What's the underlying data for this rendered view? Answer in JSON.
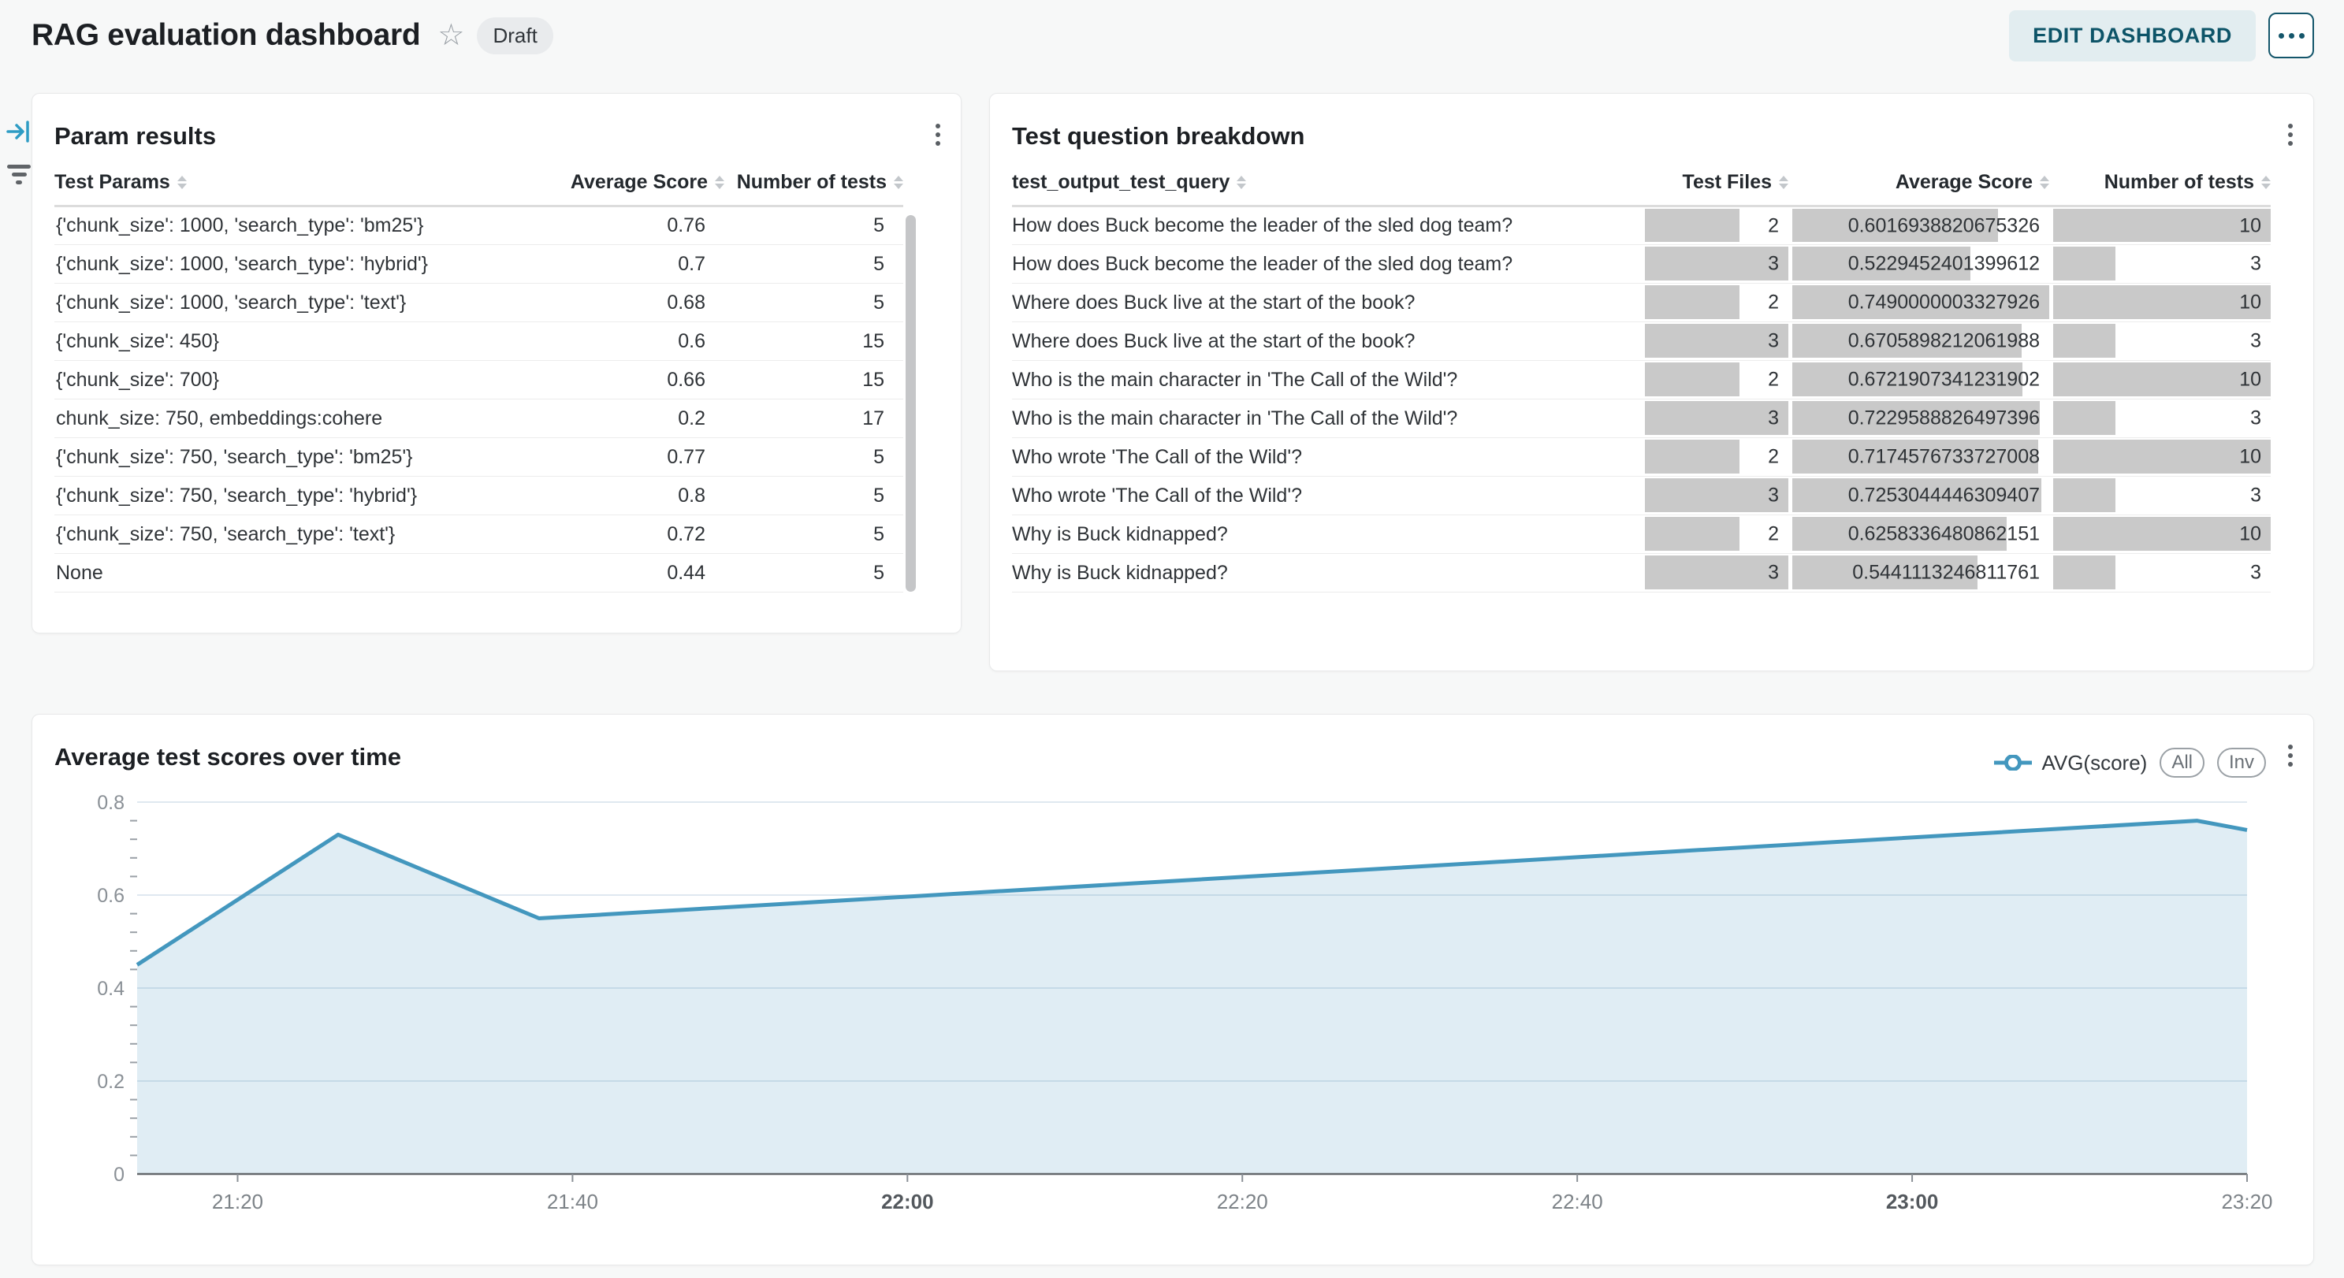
{
  "header": {
    "title": "RAG evaluation dashboard",
    "status_badge": "Draft",
    "edit_button": "EDIT DASHBOARD"
  },
  "param_results": {
    "title": "Param results",
    "columns": [
      "Test Params",
      "Average Score",
      "Number of tests"
    ],
    "rows": [
      [
        "{'chunk_size': 1000, 'search_type': 'bm25'}",
        "0.76",
        "5"
      ],
      [
        "{'chunk_size': 1000, 'search_type': 'hybrid'}",
        "0.7",
        "5"
      ],
      [
        "{'chunk_size': 1000, 'search_type': 'text'}",
        "0.68",
        "5"
      ],
      [
        "{'chunk_size': 450}",
        "0.6",
        "15"
      ],
      [
        "{'chunk_size': 700}",
        "0.66",
        "15"
      ],
      [
        "chunk_size: 750, embeddings:cohere",
        "0.2",
        "17"
      ],
      [
        "{'chunk_size': 750, 'search_type': 'bm25'}",
        "0.77",
        "5"
      ],
      [
        "{'chunk_size': 750, 'search_type': 'hybrid'}",
        "0.8",
        "5"
      ],
      [
        "{'chunk_size': 750, 'search_type': 'text'}",
        "0.72",
        "5"
      ],
      [
        "None",
        "0.44",
        "5"
      ]
    ]
  },
  "question_breakdown": {
    "title": "Test question breakdown",
    "columns": [
      "test_output_test_query",
      "Test Files",
      "Average Score",
      "Number of tests"
    ],
    "bar_color": "#c9c9c9",
    "bar_max": {
      "test_files": 3,
      "avg_score": 0.7490000003327926,
      "num_tests": 10
    },
    "rows": [
      {
        "query": "How does Buck become the leader of the sled dog team?",
        "test_files": "2",
        "avg_score": "0.6016938820675326",
        "num_tests": "10"
      },
      {
        "query": "How does Buck become the leader of the sled dog team?",
        "test_files": "3",
        "avg_score": "0.5229452401399612",
        "num_tests": "3"
      },
      {
        "query": "Where does Buck live at the start of the book?",
        "test_files": "2",
        "avg_score": "0.7490000003327926",
        "num_tests": "10"
      },
      {
        "query": "Where does Buck live at the start of the book?",
        "test_files": "3",
        "avg_score": "0.6705898212061988",
        "num_tests": "3"
      },
      {
        "query": "Who is the main character in 'The Call of the Wild'?",
        "test_files": "2",
        "avg_score": "0.6721907341231902",
        "num_tests": "10"
      },
      {
        "query": "Who is the main character in 'The Call of the Wild'?",
        "test_files": "3",
        "avg_score": "0.7229588826497396",
        "num_tests": "3"
      },
      {
        "query": "Who wrote 'The Call of the Wild'?",
        "test_files": "2",
        "avg_score": "0.7174576733727008",
        "num_tests": "10"
      },
      {
        "query": "Who wrote 'The Call of the Wild'?",
        "test_files": "3",
        "avg_score": "0.7253044446309407",
        "num_tests": "3"
      },
      {
        "query": "Why is Buck kidnapped?",
        "test_files": "2",
        "avg_score": "0.6258336480862151",
        "num_tests": "10"
      },
      {
        "query": "Why is Buck kidnapped?",
        "test_files": "3",
        "avg_score": "0.5441113246811761",
        "num_tests": "3"
      }
    ]
  },
  "chart": {
    "title": "Average test scores over time",
    "legend": {
      "series_label": "AVG(score)",
      "all_label": "All",
      "inv_label": "Inv"
    }
  },
  "chart_data": {
    "type": "area",
    "title": "Average test scores over time",
    "series": [
      {
        "name": "AVG(score)",
        "points": [
          {
            "t": "21:14",
            "v": 0.45
          },
          {
            "t": "21:26",
            "v": 0.73
          },
          {
            "t": "21:38",
            "v": 0.55
          },
          {
            "t": "23:17",
            "v": 0.76
          },
          {
            "t": "23:20",
            "v": 0.74
          }
        ]
      }
    ],
    "x_ticks": [
      "21:20",
      "21:40",
      "22:00",
      "22:20",
      "22:40",
      "23:00",
      "23:20"
    ],
    "bold_x_ticks": [
      "22:00",
      "23:00"
    ],
    "y_ticks": [
      "0",
      "0.2",
      "0.4",
      "0.6",
      "0.8"
    ],
    "ylim": [
      0,
      0.8
    ],
    "y_minor_step": 0.04,
    "xlim_minutes": [
      1274,
      1400
    ],
    "grid": true,
    "legend_position": "top-right",
    "line_color": "#4397be",
    "fill_color": "#4696bd",
    "fill_opacity": 0.17,
    "grid_color": "#dfe8f0",
    "axis_color": "#63676b",
    "tick_label_color": "#8a9096"
  }
}
